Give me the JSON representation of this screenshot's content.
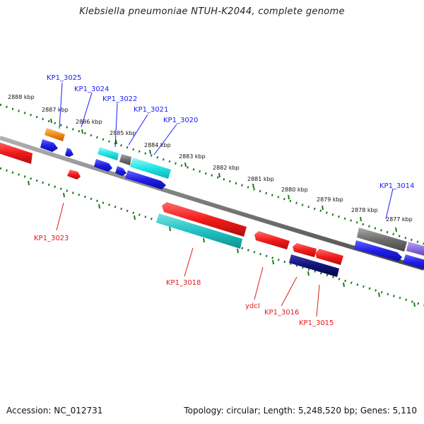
{
  "title": "Klebsiella pneumoniae NTUH-K2044, complete genome",
  "footer": {
    "accession": "Accession: NC_012731",
    "summary": "Topology: circular; Length: 5,248,520 bp; Genes: 5,110"
  },
  "scale_labels": {
    "k2888": "2888 kbp",
    "k2887": "2887 kbp",
    "k2886": "2886 kbp",
    "k2885": "2885 kbp",
    "k2884": "2884 kbp",
    "k2883": "2883 kbp",
    "k2882": "2882 kbp",
    "k2881": "2881 kbp",
    "k2880": "2880 kbp",
    "k2879": "2879 kbp",
    "k2878": "2878 kbp",
    "k2877": "2877 kbp"
  },
  "gene_labels": {
    "kp1_3025": "KP1_3025",
    "kp1_3024": "KP1_3024",
    "kp1_3022": "KP1_3022",
    "kp1_3021": "KP1_3021",
    "kp1_3020": "KP1_3020",
    "kp1_3014": "KP1_3014",
    "kp1_3023": "KP1_3023",
    "kp1_3018": "KP1_3018",
    "ydcl": "ydcI",
    "kp1_3016": "KP1_3016",
    "kp1_3015": "KP1_3015"
  },
  "colors": {
    "backbone": "#808080",
    "tick": "#1e7a1e",
    "label_forward": "#1a1aff",
    "label_reverse": "#e21a1a",
    "red_gene": "#f21b1b",
    "blue_gene": "#1f1fe6",
    "cyan_gene": "#21e3e3",
    "teal_gene": "#1fc2c2",
    "gray_gene": "#6e6e6e",
    "orange_gene": "#f08a1a",
    "navy_gene": "#111177",
    "lavender_gene": "#8a6ee0"
  }
}
